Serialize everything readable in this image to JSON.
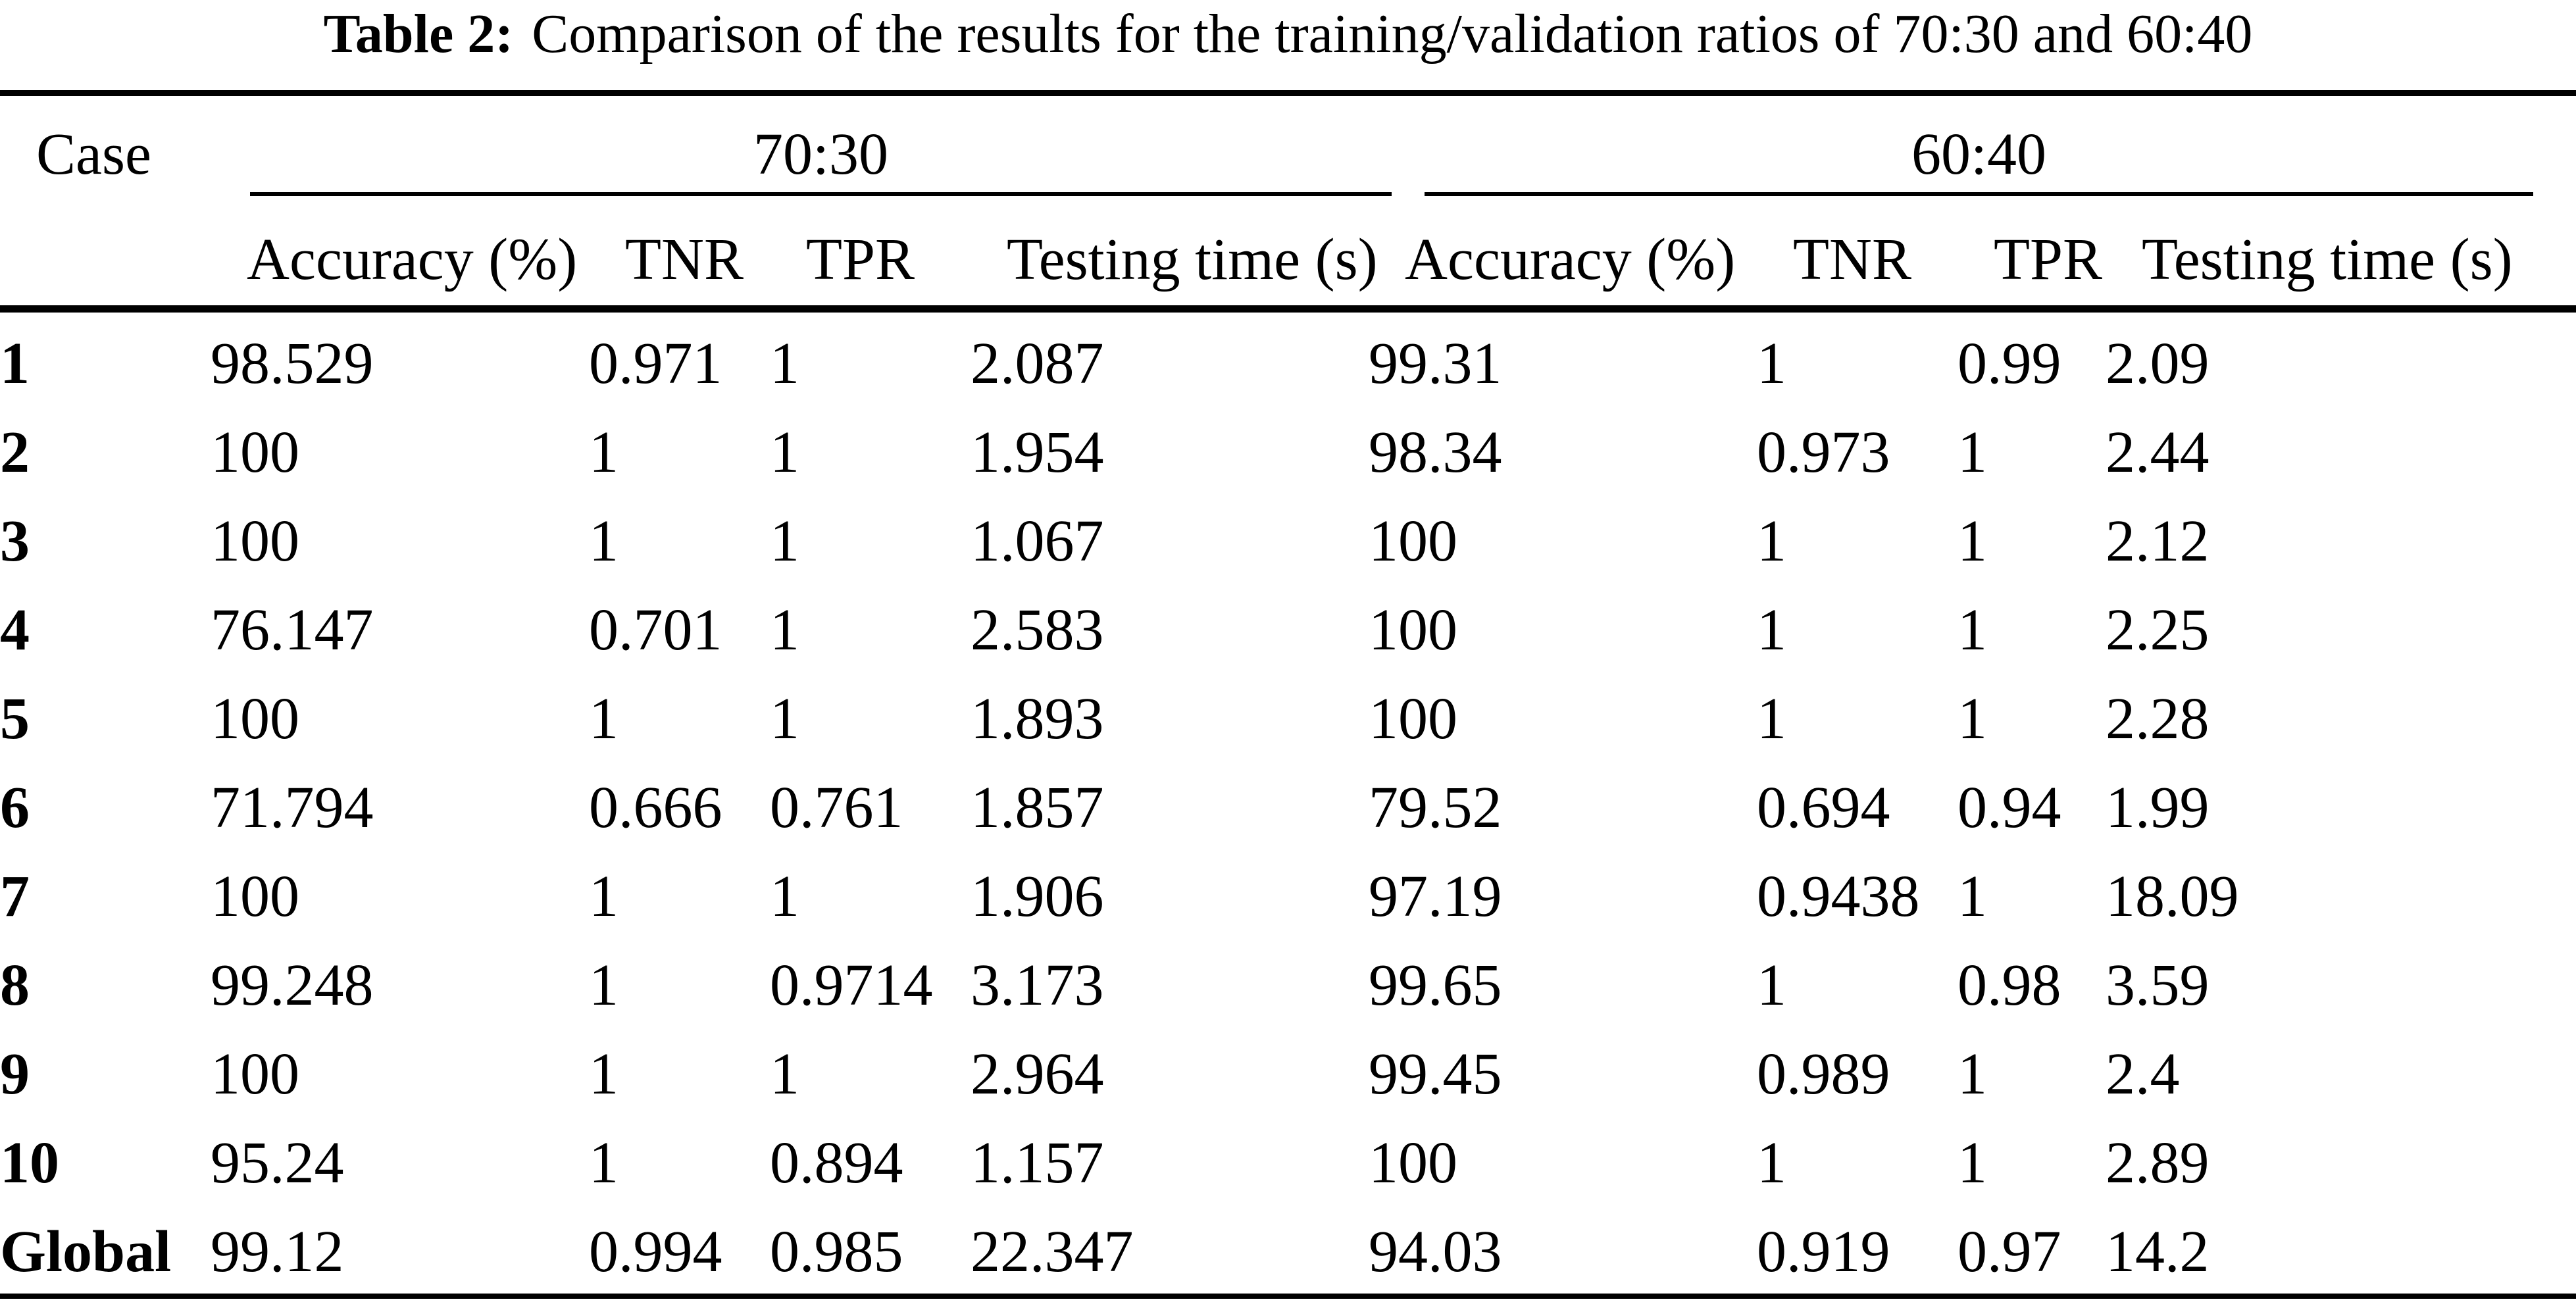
{
  "title": {
    "label": "Table 2:",
    "text": "Comparison of the results for the training/validation ratios of 70:30 and 60:40"
  },
  "table": {
    "case_header": "Case",
    "groups": {
      "left": "70:30",
      "right": "60:40"
    },
    "sub_headers": [
      "Accuracy (%)",
      "TNR",
      "TPR",
      "Testing time (s)"
    ],
    "rows": [
      {
        "case": "1",
        "c7030": [
          "98.529",
          "0.971",
          "1",
          "2.087"
        ],
        "c6040": [
          "99.31",
          "1",
          "0.99",
          "2.09"
        ]
      },
      {
        "case": "2",
        "c7030": [
          "100",
          "1",
          "1",
          "1.954"
        ],
        "c6040": [
          "98.34",
          "0.973",
          "1",
          "2.44"
        ]
      },
      {
        "case": "3",
        "c7030": [
          "100",
          "1",
          "1",
          "1.067"
        ],
        "c6040": [
          "100",
          "1",
          "1",
          "2.12"
        ]
      },
      {
        "case": "4",
        "c7030": [
          "76.147",
          "0.701",
          "1",
          "2.583"
        ],
        "c6040": [
          "100",
          "1",
          "1",
          "2.25"
        ]
      },
      {
        "case": "5",
        "c7030": [
          "100",
          "1",
          "1",
          "1.893"
        ],
        "c6040": [
          "100",
          "1",
          "1",
          "2.28"
        ]
      },
      {
        "case": "6",
        "c7030": [
          "71.794",
          "0.666",
          "0.761",
          "1.857"
        ],
        "c6040": [
          "79.52",
          "0.694",
          "0.94",
          "1.99"
        ]
      },
      {
        "case": "7",
        "c7030": [
          "100",
          "1",
          "1",
          "1.906"
        ],
        "c6040": [
          "97.19",
          "0.9438",
          "1",
          "18.09"
        ]
      },
      {
        "case": "8",
        "c7030": [
          "99.248",
          "1",
          "0.9714",
          "3.173"
        ],
        "c6040": [
          "99.65",
          "1",
          "0.98",
          "3.59"
        ]
      },
      {
        "case": "9",
        "c7030": [
          "100",
          "1",
          "1",
          "2.964"
        ],
        "c6040": [
          "99.45",
          "0.989",
          "1",
          "2.4"
        ]
      },
      {
        "case": "10",
        "c7030": [
          "95.24",
          "1",
          "0.894",
          "1.157"
        ],
        "c6040": [
          "100",
          "1",
          "1",
          "2.89"
        ]
      },
      {
        "case": "Global",
        "c7030": [
          "99.12",
          "0.994",
          "0.985",
          "22.347"
        ],
        "c6040": [
          "94.03",
          "0.919",
          "0.97",
          "14.2"
        ]
      }
    ]
  }
}
